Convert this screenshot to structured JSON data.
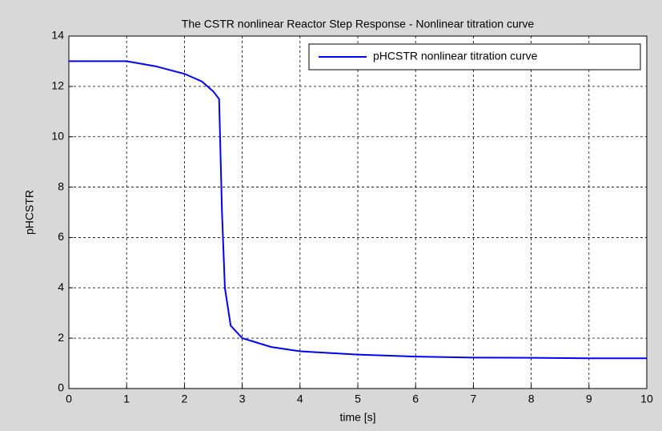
{
  "chart_data": {
    "type": "line",
    "title": "The CSTR nonlinear Reactor  Step Response - Nonlinear titration curve",
    "x_label": "time [s]",
    "y_label": "pHCSTR",
    "x": [
      0,
      1,
      1.5,
      2,
      2.3,
      2.5,
      2.6,
      2.65,
      2.7,
      2.8,
      3,
      3.5,
      4,
      5,
      6,
      7,
      8,
      9,
      10
    ],
    "series": [
      {
        "name": "pHCSTR nonlinear titration curve",
        "color": "#0000ff",
        "values": [
          13,
          13,
          12.8,
          12.5,
          12.2,
          11.8,
          11.5,
          7,
          4,
          2.5,
          2.0,
          1.65,
          1.48,
          1.35,
          1.27,
          1.23,
          1.22,
          1.2,
          1.2
        ]
      }
    ],
    "xlim": [
      0,
      10
    ],
    "xticks": [
      0,
      1,
      2,
      3,
      4,
      5,
      6,
      7,
      8,
      9,
      10
    ],
    "ylim": [
      0,
      14
    ],
    "yticks": [
      0,
      2,
      4,
      6,
      8,
      10,
      12,
      14
    ],
    "grid": true,
    "legend": "upper right"
  }
}
